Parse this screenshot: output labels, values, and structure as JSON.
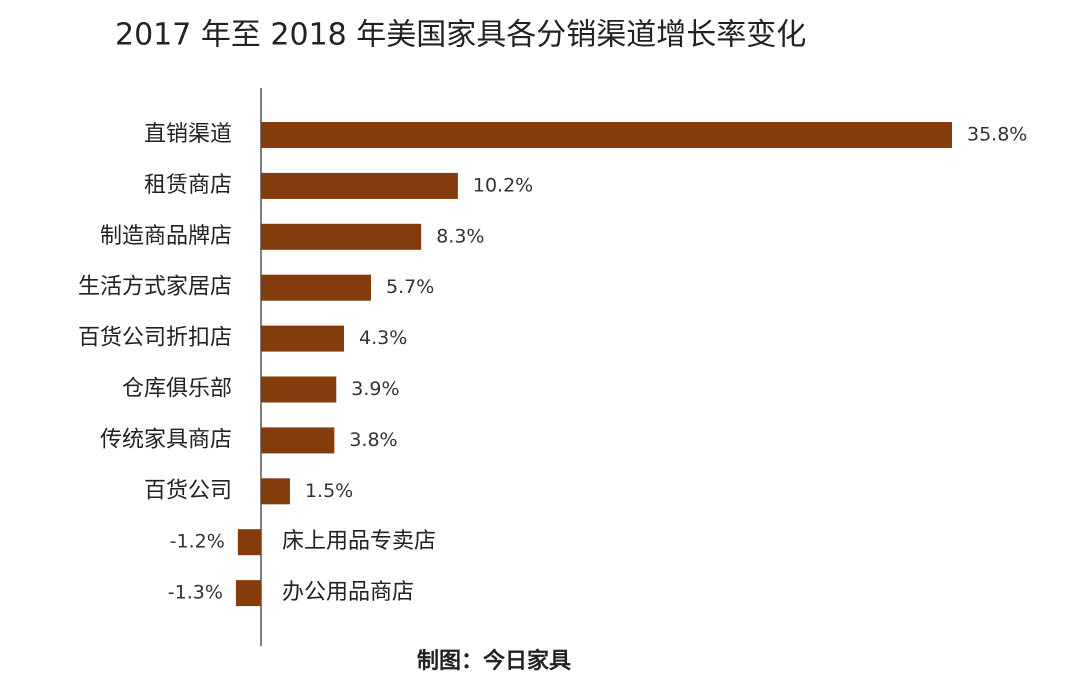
{
  "chart_data": {
    "type": "bar",
    "orientation": "horizontal",
    "title": "2017 年至 2018 年美国家具各分销渠道增长率变化",
    "categories": [
      "直销渠道",
      "租赁商店",
      "制造商品牌店",
      "生活方式家居店",
      "百货公司折扣店",
      "仓库俱乐部",
      "传统家具商店",
      "百货公司",
      "床上用品专卖店",
      "办公用品商店"
    ],
    "values": [
      35.8,
      10.2,
      8.3,
      5.7,
      4.3,
      3.9,
      3.8,
      1.5,
      -1.2,
      -1.3
    ],
    "value_labels": [
      "35.8%",
      "10.2%",
      "8.3%",
      "5.7%",
      "4.3%",
      "3.9%",
      "3.8%",
      "1.5%",
      "-1.2%",
      "-1.3%"
    ],
    "color": "#843c0c",
    "source": "制图：今日家具"
  }
}
